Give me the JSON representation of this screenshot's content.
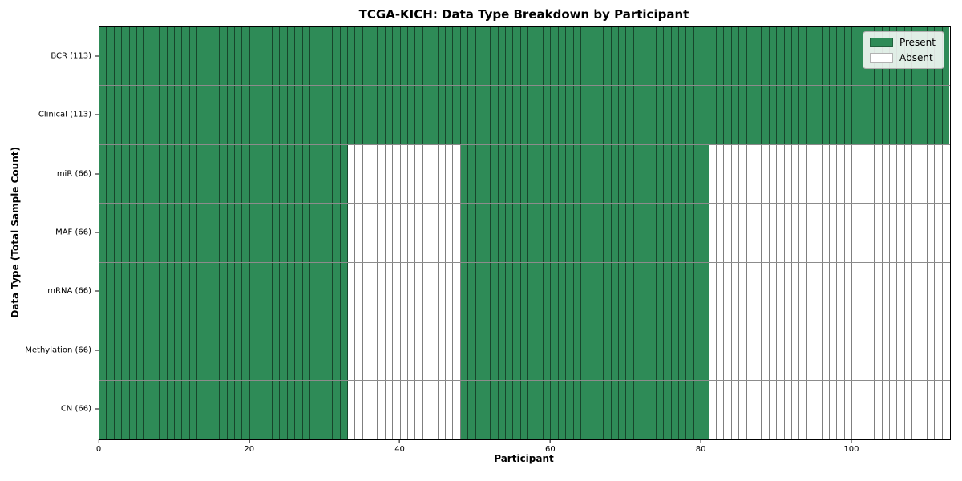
{
  "chart_data": {
    "type": "heatmap",
    "title": "TCGA-KICH: Data Type Breakdown by Participant",
    "xlabel": "Participant",
    "ylabel": "Data Type (Total Sample Count)",
    "n_participants": 113,
    "x_range": [
      0,
      113
    ],
    "x_ticks": [
      0,
      20,
      40,
      60,
      80,
      100
    ],
    "grid": true,
    "rows": [
      {
        "key": "bcr",
        "label": "BCR (113)",
        "present_count": 113,
        "present_ranges": [
          [
            0,
            113
          ]
        ]
      },
      {
        "key": "clinical",
        "label": "Clinical (113)",
        "present_count": 113,
        "present_ranges": [
          [
            0,
            113
          ]
        ]
      },
      {
        "key": "mir",
        "label": "miR (66)",
        "present_count": 66,
        "present_ranges": [
          [
            0,
            33
          ],
          [
            48,
            81
          ]
        ]
      },
      {
        "key": "maf",
        "label": "MAF (66)",
        "present_count": 66,
        "present_ranges": [
          [
            0,
            33
          ],
          [
            48,
            81
          ]
        ]
      },
      {
        "key": "mrna",
        "label": "mRNA (66)",
        "present_count": 66,
        "present_ranges": [
          [
            0,
            33
          ],
          [
            48,
            81
          ]
        ]
      },
      {
        "key": "methylation",
        "label": "Methylation (66)",
        "present_count": 66,
        "present_ranges": [
          [
            0,
            33
          ],
          [
            48,
            81
          ]
        ]
      },
      {
        "key": "cn",
        "label": "CN (66)",
        "present_count": 66,
        "present_ranges": [
          [
            0,
            33
          ],
          [
            48,
            81
          ]
        ]
      }
    ],
    "legend": {
      "position": "upper-right",
      "entries": [
        {
          "label": "Present",
          "color": "#2e8b57"
        },
        {
          "label": "Absent",
          "color": "#ffffff"
        }
      ]
    },
    "colors": {
      "present": "#2e8b57",
      "absent": "#ffffff",
      "axes_edge": "#000000",
      "background": "#ffffff"
    }
  }
}
